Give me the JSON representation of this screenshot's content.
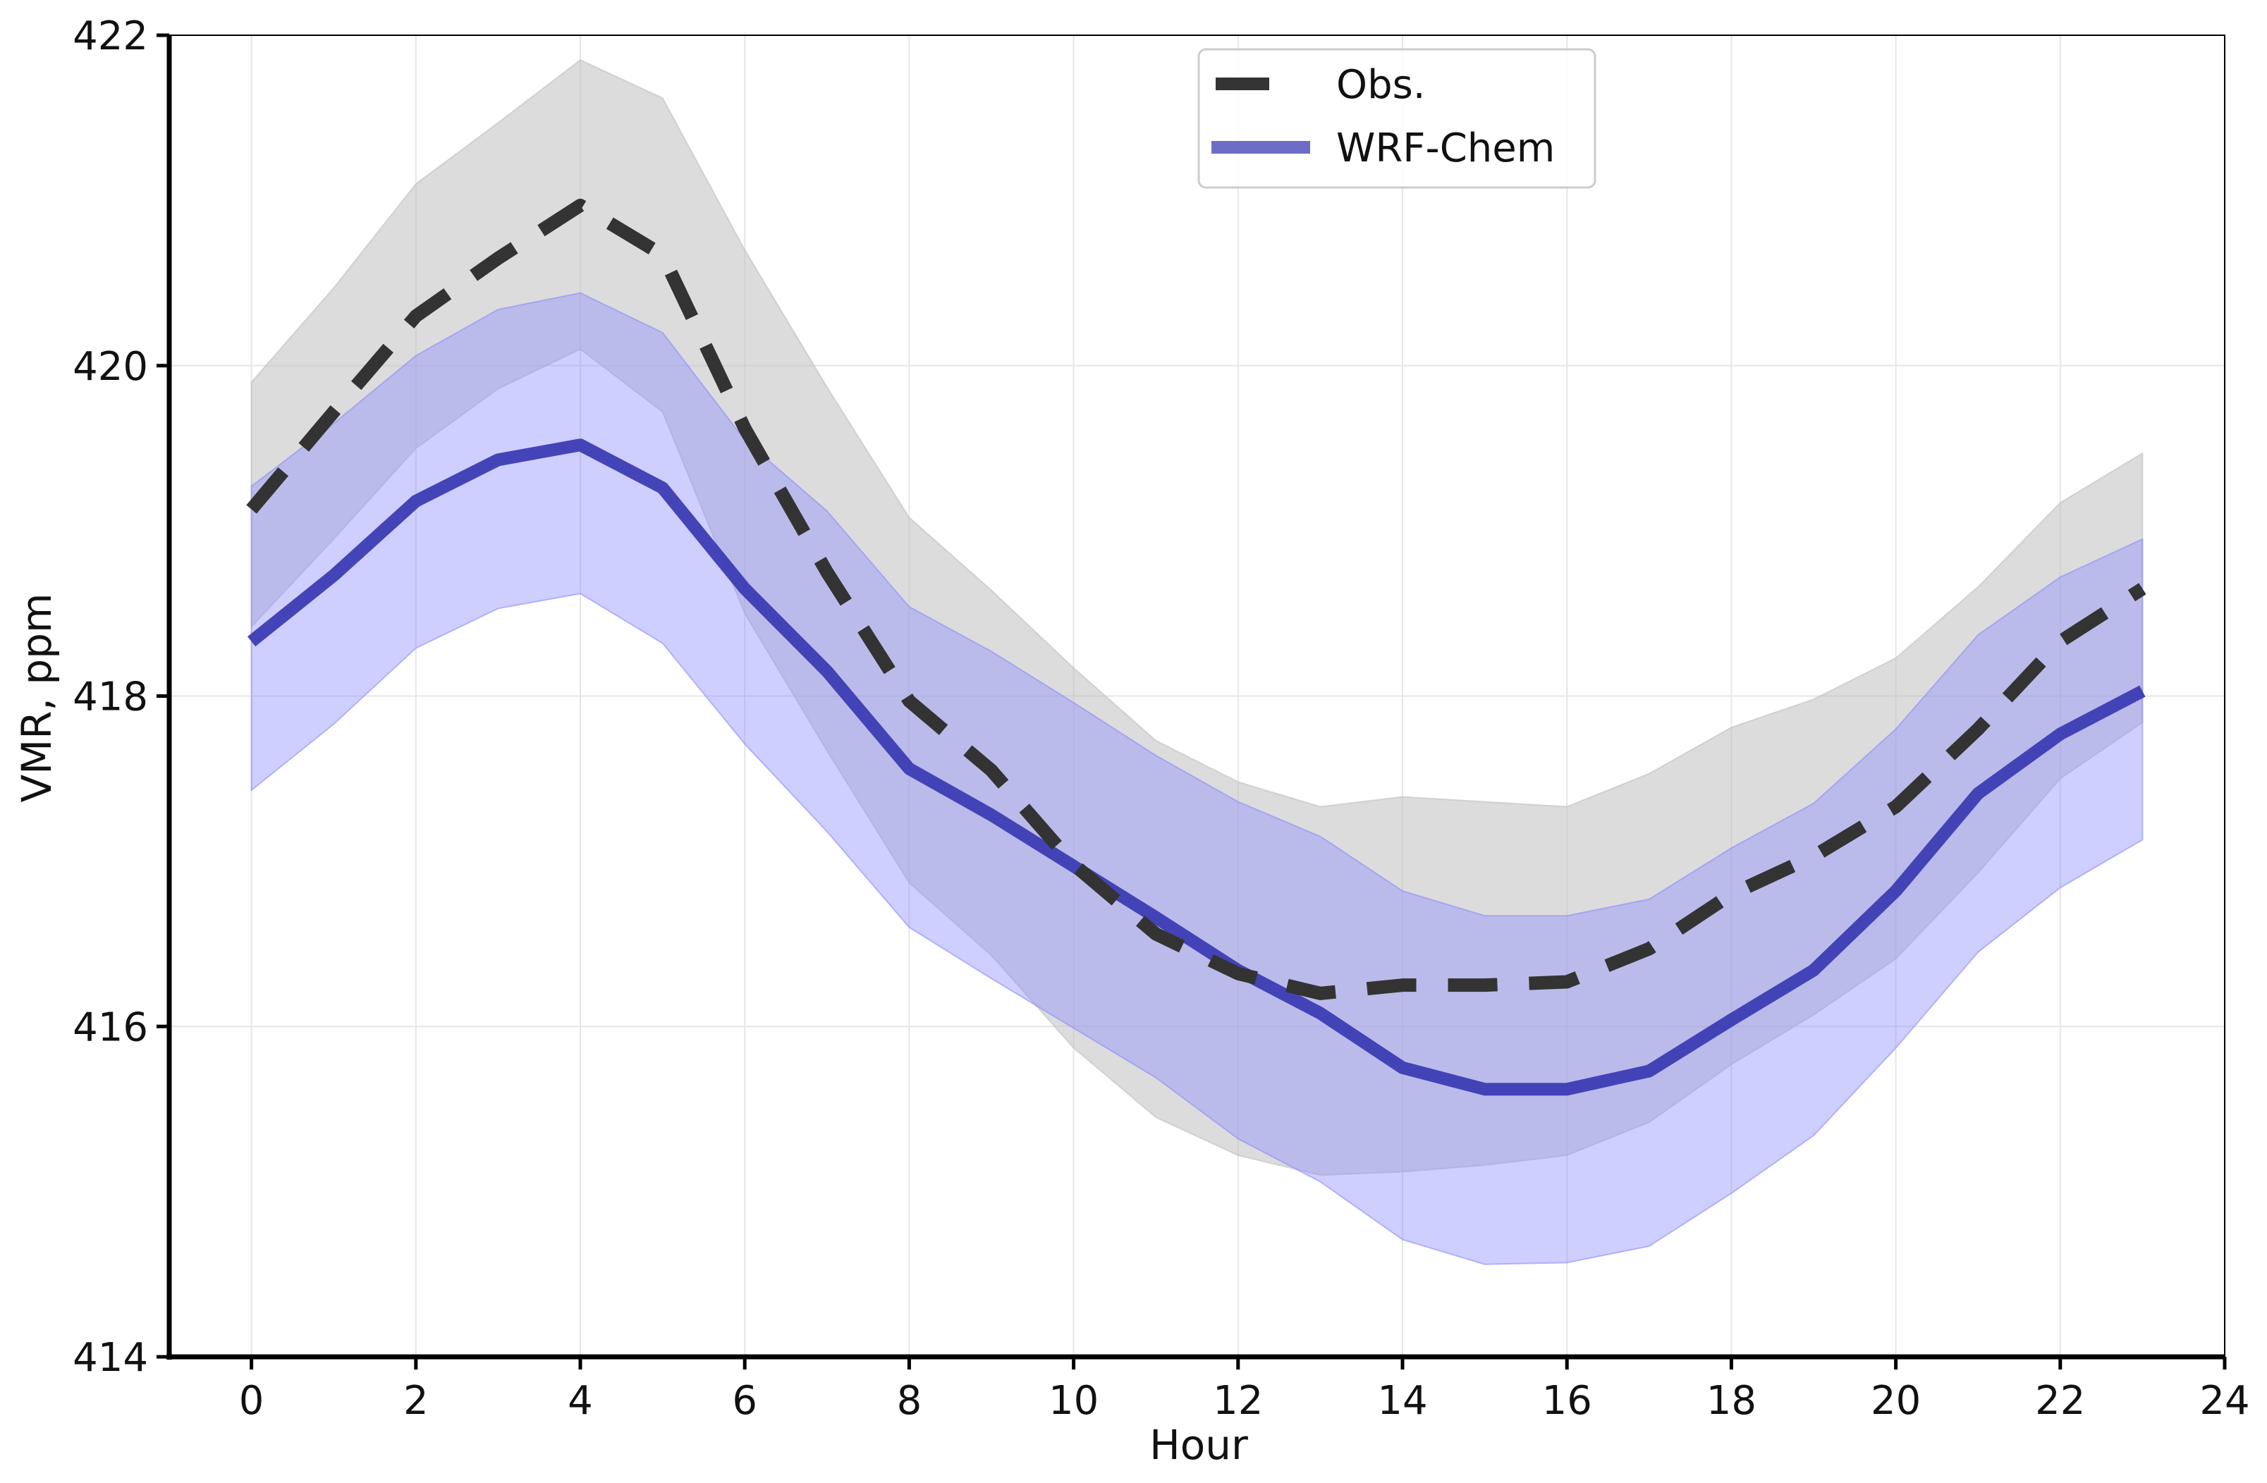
{
  "chart_data": {
    "type": "line",
    "title": "",
    "xlabel": "Hour",
    "ylabel": "VMR, ppm",
    "xlim": [
      -1,
      24
    ],
    "ylim": [
      414,
      422
    ],
    "xticks": [
      0,
      2,
      4,
      6,
      8,
      10,
      12,
      14,
      16,
      18,
      20,
      22,
      24
    ],
    "yticks": [
      414,
      416,
      418,
      420,
      422
    ],
    "grid": true,
    "legend_position": "top-center",
    "x": [
      0,
      1,
      2,
      3,
      4,
      5,
      6,
      7,
      8,
      9,
      10,
      11,
      12,
      13,
      14,
      15,
      16,
      17,
      18,
      19,
      20,
      21,
      22,
      23
    ],
    "series": [
      {
        "name": "Obs.",
        "style": "dashed",
        "color": "#333333",
        "band_color": "#bfbfbf",
        "values": [
          419.13,
          419.72,
          420.3,
          420.65,
          420.97,
          420.67,
          419.62,
          418.75,
          417.97,
          417.55,
          416.98,
          416.56,
          416.32,
          416.2,
          416.25,
          416.25,
          416.27,
          416.47,
          416.8,
          417.03,
          417.33,
          417.8,
          418.33,
          418.65
        ],
        "upper": [
          419.9,
          420.47,
          421.1,
          421.47,
          421.85,
          421.62,
          420.7,
          419.87,
          419.08,
          418.64,
          418.17,
          417.73,
          417.48,
          417.33,
          417.39,
          417.36,
          417.33,
          417.53,
          417.81,
          417.98,
          418.23,
          418.66,
          419.17,
          419.47
        ],
        "lower": [
          418.42,
          418.95,
          419.5,
          419.86,
          420.1,
          419.72,
          418.5,
          417.67,
          416.87,
          416.43,
          415.87,
          415.45,
          415.22,
          415.1,
          415.12,
          415.16,
          415.22,
          415.42,
          415.77,
          416.07,
          416.41,
          416.93,
          417.5,
          417.84
        ]
      },
      {
        "name": "WRF-Chem",
        "style": "solid",
        "color": "#3c3cb4",
        "band_color": "#8c8cff",
        "values": [
          418.33,
          418.73,
          419.18,
          419.43,
          419.52,
          419.26,
          418.65,
          418.15,
          417.56,
          417.28,
          416.97,
          416.66,
          416.34,
          416.08,
          415.75,
          415.62,
          415.62,
          415.73,
          416.04,
          416.34,
          416.82,
          417.41,
          417.77,
          418.03
        ],
        "upper": [
          419.27,
          419.65,
          420.06,
          420.34,
          420.44,
          420.2,
          419.55,
          419.12,
          418.54,
          418.27,
          417.96,
          417.64,
          417.36,
          417.15,
          416.82,
          416.67,
          416.67,
          416.77,
          417.08,
          417.35,
          417.8,
          418.37,
          418.72,
          418.95
        ],
        "lower": [
          417.43,
          417.83,
          418.29,
          418.53,
          418.62,
          418.32,
          417.71,
          417.18,
          416.6,
          416.29,
          415.99,
          415.69,
          415.32,
          415.06,
          414.71,
          414.56,
          414.57,
          414.67,
          414.99,
          415.34,
          415.87,
          416.45,
          416.84,
          417.13
        ]
      }
    ]
  }
}
